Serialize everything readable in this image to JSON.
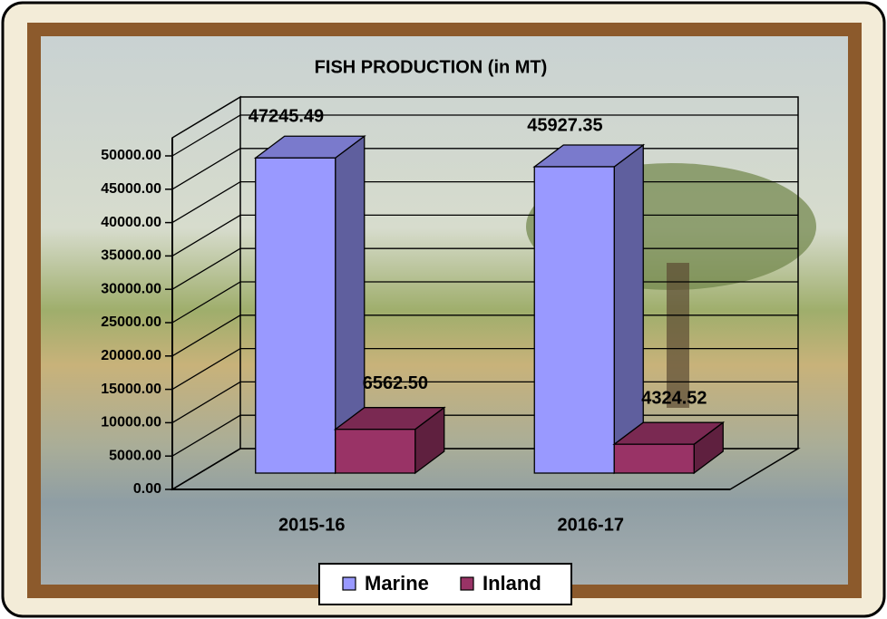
{
  "chart_data": {
    "type": "bar3d",
    "title": "FISH PRODUCTION (in MT)",
    "categories": [
      "2015-16",
      "2016-17"
    ],
    "series": [
      {
        "name": "Marine",
        "color": "#9999ff",
        "values": [
          47245.49,
          45927.35
        ]
      },
      {
        "name": "Inland",
        "color": "#993366",
        "values": [
          6562.5,
          4324.52
        ],
        "value_labels": [
          "6562.50",
          "4324.52"
        ]
      }
    ],
    "ylim": [
      0,
      50000
    ],
    "yticks": [
      {
        "value": 0,
        "label": "0.00"
      },
      {
        "value": 5000,
        "label": "5000.00"
      },
      {
        "value": 10000,
        "label": "10000.00"
      },
      {
        "value": 15000,
        "label": "15000.00"
      },
      {
        "value": 20000,
        "label": "20000.00"
      },
      {
        "value": 25000,
        "label": "25000.00"
      },
      {
        "value": 30000,
        "label": "30000.00"
      },
      {
        "value": 35000,
        "label": "35000.00"
      },
      {
        "value": 40000,
        "label": "40000.00"
      },
      {
        "value": 45000,
        "label": "45000.00"
      },
      {
        "value": 50000,
        "label": "50000.00"
      }
    ],
    "grid": true,
    "legend": "bottom"
  }
}
